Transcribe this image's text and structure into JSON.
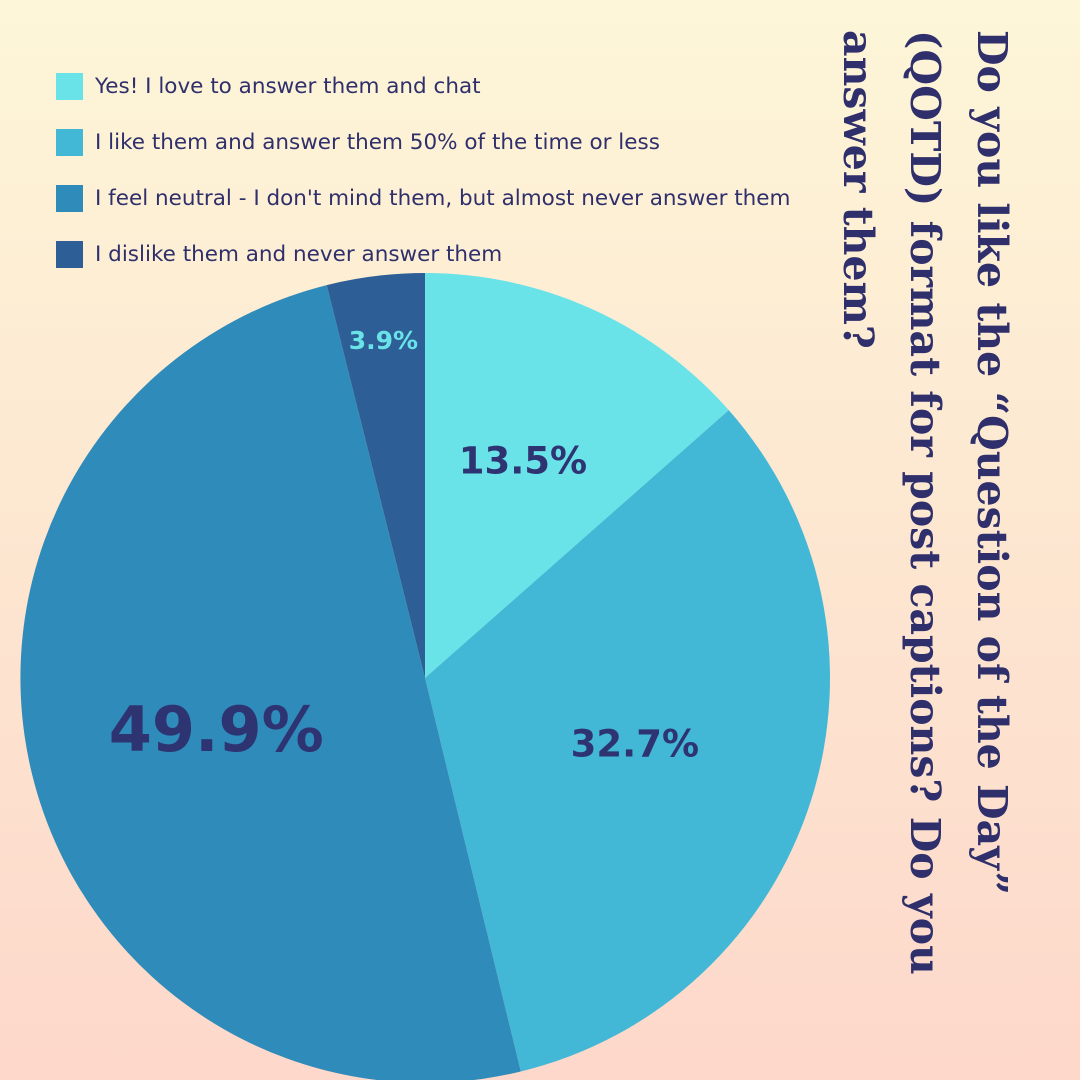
{
  "chart_data": {
    "type": "pie",
    "title": "Do you like the “Question of the Day” (QOTD) format for post captions? Do you answer them?",
    "categories": [
      "Yes! I love to answer them and chat",
      "I like them and answer them 50% of the time or less",
      "I feel neutral - I don't mind them, but almost never answer them",
      "I dislike them and never answer them"
    ],
    "values": [
      13.5,
      32.7,
      49.9,
      3.9
    ],
    "data_labels": [
      "13.5%",
      "32.7%",
      "49.9%",
      "3.9%"
    ],
    "colors": [
      "#6ae3e8",
      "#43b7d6",
      "#2e8bba",
      "#2d5e96"
    ],
    "label_colors": [
      "#2e3472",
      "#2e3472",
      "#2e3472",
      "#6ae3e8"
    ],
    "legend_position": "top-left",
    "start_angle": "12 o'clock",
    "direction": "clockwise"
  }
}
